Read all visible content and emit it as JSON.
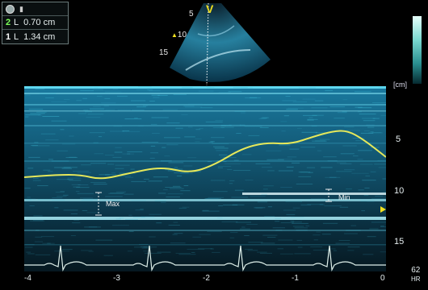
{
  "measurements": {
    "header_icon": "rec-indicator-icon",
    "rows": [
      {
        "index": "2",
        "label": "L",
        "value": "0.70 cm"
      },
      {
        "index": "1",
        "label": "L",
        "value": "1.34 cm"
      }
    ]
  },
  "sector": {
    "marker": "V",
    "depth_labels": [
      "5",
      "10",
      "15"
    ]
  },
  "mmode": {
    "unit": "[cm]",
    "y_ticks": [
      "5",
      "10",
      "15"
    ],
    "x_ticks": [
      "-4",
      "-3",
      "-2",
      "-1",
      "0"
    ],
    "max_label": "Max",
    "min_label": "Min"
  },
  "heart_rate": {
    "value": "62",
    "unit": "HR"
  },
  "colors": {
    "trace": "#e6e85a",
    "ecg": "#dff0ea",
    "speckle": "#3bb6d2",
    "marker": "#f0e020"
  }
}
